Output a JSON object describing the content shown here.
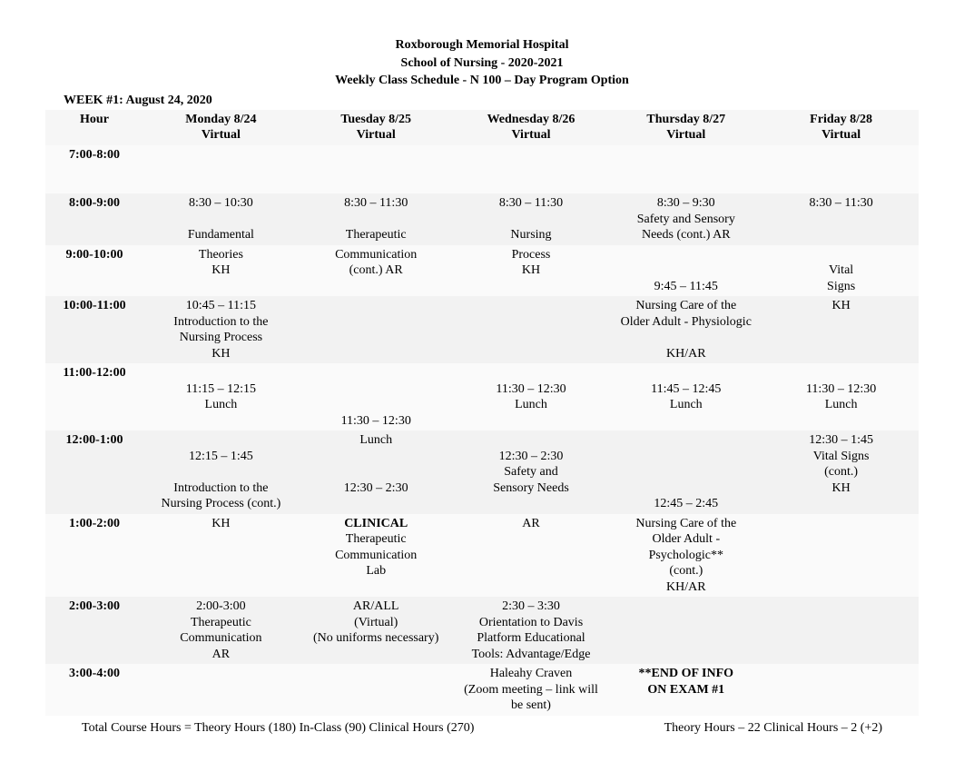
{
  "header": {
    "line1": "Roxborough Memorial Hospital",
    "line2": "School of Nursing - 2020-2021",
    "line3": "Weekly Class Schedule - N 100 – Day Program Option"
  },
  "week_label": "WEEK #1:  August 24, 2020",
  "columns": {
    "hour": "Hour",
    "mon": "Monday 8/24\nVirtual",
    "tue": "Tuesday 8/25\nVirtual",
    "wed": "Wednesday 8/26\nVirtual",
    "thu": "Thursday 8/27\nVirtual",
    "fri": "Friday 8/28\nVirtual"
  },
  "hours": {
    "r1": "7:00-8:00",
    "r2": "8:00-9:00",
    "r3": "9:00-10:00",
    "r4": "10:00-11:00",
    "r5": "11:00-12:00",
    "r6": "12:00-1:00",
    "r7": "1:00-2:00",
    "r8": "2:00-3:00",
    "r9": "3:00-4:00"
  },
  "cells": {
    "mon": {
      "r2": "8:30 – 10:30\n\nFundamental",
      "r3": "Theories\n                       KH",
      "r4": "10:45 – 11:15\nIntroduction to the\nNursing Process\nKH",
      "r5": "\n11:15 – 12:15\nLunch",
      "r6": "\n12:15 – 1:45\n\nIntroduction to the\nNursing Process (cont.)",
      "r7": "KH",
      "r8": "2:00-3:00\nTherapeutic\nCommunication\nAR"
    },
    "tue": {
      "r2": "8:30 – 11:30\n\nTherapeutic",
      "r3": "Communication\n             (cont.)  AR",
      "r5": "\n\n\n11:30 – 12:30",
      "r6": "Lunch\n\n\n12:30 – 2:30",
      "r7_bold": "CLINICAL",
      "r7_rest": "Therapeutic\nCommunication\nLab",
      "r8": "AR/ALL\n(Virtual)\n(No uniforms necessary)"
    },
    "wed": {
      "r2": "8:30 – 11:30\n\nNursing",
      "r3": "Process\nKH",
      "r5": "\n11:30 – 12:30\nLunch",
      "r6": "\n12:30 – 2:30\nSafety and\nSensory Needs",
      "r7": "AR",
      "r8": "2:30 – 3:30\nOrientation to Davis\nPlatform Educational\nTools: Advantage/Edge",
      "r9": "Haleahy Craven\n(Zoom meeting – link will\nbe sent)"
    },
    "thu": {
      "r2": "8:30 – 9:30\nSafety and Sensory\nNeeds (cont.)  AR",
      "r3": "\n\n9:45 – 11:45",
      "r4": "Nursing Care of the\nOlder Adult - Physiologic\n\nKH/AR",
      "r5": "\n11:45 – 12:45\nLunch",
      "r6": "\n\n\n\n12:45 – 2:45",
      "r7": "Nursing Care of the\nOlder Adult -\nPsychologic**\n(cont.)\nKH/AR",
      "r9_bold": "**END OF INFO\nON EXAM #1"
    },
    "fri": {
      "r2": "8:30 – 11:30",
      "r3": "\nVital\nSigns",
      "r4": "KH",
      "r5": "\n11:30 – 12:30\nLunch",
      "r6": "12:30 – 1:45\nVital Signs\n(cont.)\nKH"
    }
  },
  "footer": {
    "left": "Total Course Hours = Theory Hours (180)    In-Class (90)    Clinical Hours (270)",
    "right": "Theory Hours – 22     Clinical Hours – 2 (+2)"
  }
}
